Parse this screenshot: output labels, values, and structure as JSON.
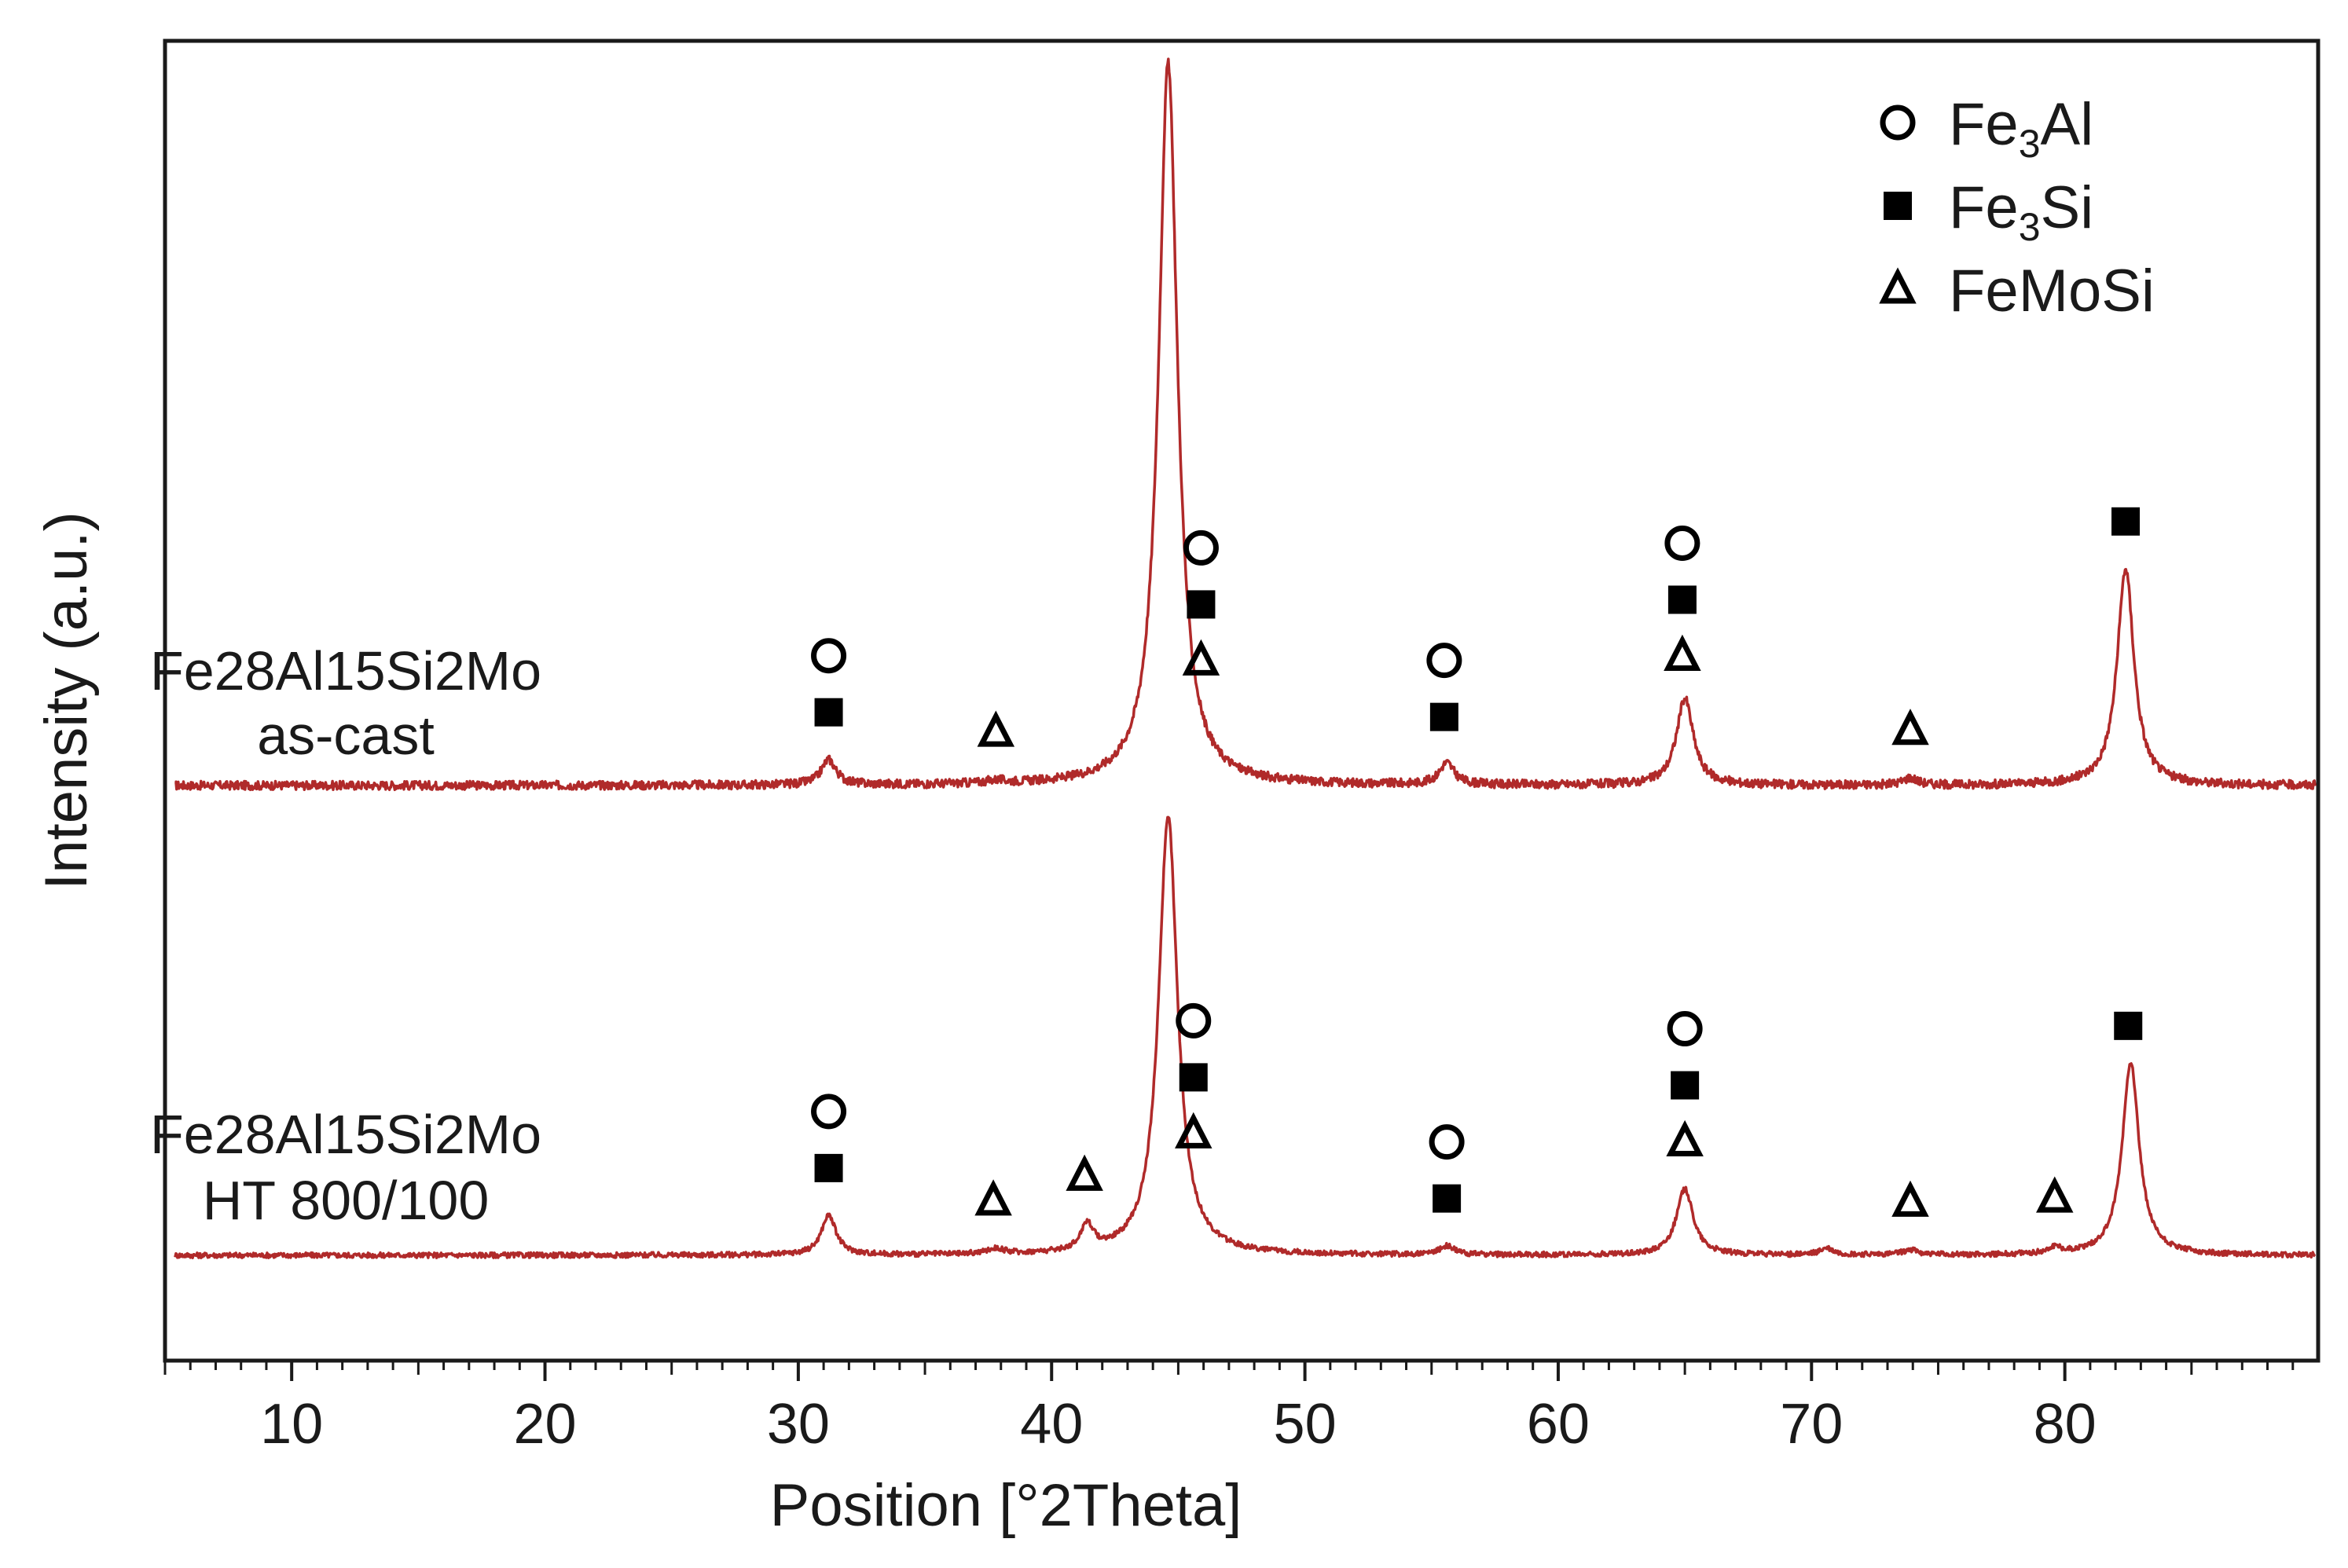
{
  "chart_data": {
    "type": "line",
    "title": "",
    "xlabel": "Position [°2Theta]",
    "ylabel": "Intensity (a.u.)",
    "xlim": [
      5,
      90
    ],
    "xticks": [
      10,
      20,
      30,
      40,
      50,
      60,
      70,
      80
    ],
    "xtick_labels": [
      "10",
      "20",
      "30",
      "40",
      "50",
      "60",
      "70",
      "80"
    ],
    "y_ticks_shown": false,
    "line_color": "#b02a2a",
    "legend": {
      "location": "top-right",
      "entries": [
        {
          "name": "Fe3Al",
          "base": "Fe",
          "sub": "3",
          "rest": "Al",
          "marker": "open-circle"
        },
        {
          "name": "Fe3Si",
          "base": "Fe",
          "sub": "3",
          "rest": "Si",
          "marker": "filled-square"
        },
        {
          "name": "FeMoSi",
          "base": "FeMoSi",
          "sub": "",
          "rest": "",
          "marker": "open-triangle"
        }
      ]
    },
    "series": [
      {
        "name": "Fe28Al15Si2Mo as-cast",
        "label_lines": [
          "Fe28Al15Si2Mo",
          "as-cast"
        ],
        "baseline": 0,
        "peaks": [
          {
            "x": 31.2,
            "height": 0.035,
            "width": 0.35
          },
          {
            "x": 37.8,
            "height": 0.004,
            "width": 0.5
          },
          {
            "x": 44.6,
            "height": 1.0,
            "width": 0.45
          },
          {
            "x": 55.6,
            "height": 0.03,
            "width": 0.35
          },
          {
            "x": 65.0,
            "height": 0.12,
            "width": 0.4
          },
          {
            "x": 73.9,
            "height": 0.01,
            "width": 0.35
          },
          {
            "x": 82.4,
            "height": 0.3,
            "width": 0.4
          }
        ],
        "annotations": [
          {
            "x": 31.2,
            "phases": [
              "Fe3Al",
              "Fe3Si"
            ]
          },
          {
            "x": 37.8,
            "phases": [
              "FeMoSi"
            ]
          },
          {
            "x": 45.9,
            "phases": [
              "Fe3Al",
              "Fe3Si",
              "FeMoSi"
            ]
          },
          {
            "x": 55.5,
            "phases": [
              "Fe3Al",
              "Fe3Si"
            ]
          },
          {
            "x": 64.9,
            "phases": [
              "Fe3Al",
              "Fe3Si",
              "FeMoSi"
            ]
          },
          {
            "x": 73.9,
            "phases": [
              "FeMoSi"
            ]
          },
          {
            "x": 82.4,
            "phases": [
              "Fe3Si"
            ]
          }
        ]
      },
      {
        "name": "Fe28Al15Si2Mo HT 800/100",
        "label_lines": [
          "Fe28Al15Si2Mo",
          "HT 800/100"
        ],
        "baseline": 0,
        "peaks": [
          {
            "x": 31.2,
            "height": 0.09,
            "width": 0.35
          },
          {
            "x": 37.8,
            "height": 0.012,
            "width": 0.4
          },
          {
            "x": 41.4,
            "height": 0.06,
            "width": 0.3
          },
          {
            "x": 44.6,
            "height": 1.0,
            "width": 0.45
          },
          {
            "x": 55.6,
            "height": 0.02,
            "width": 0.35
          },
          {
            "x": 65.0,
            "height": 0.15,
            "width": 0.4
          },
          {
            "x": 70.6,
            "height": 0.015,
            "width": 0.3
          },
          {
            "x": 73.9,
            "height": 0.012,
            "width": 0.35
          },
          {
            "x": 79.6,
            "height": 0.015,
            "width": 0.3
          },
          {
            "x": 82.6,
            "height": 0.44,
            "width": 0.4
          }
        ],
        "annotations": [
          {
            "x": 31.2,
            "phases": [
              "Fe3Al",
              "Fe3Si"
            ]
          },
          {
            "x": 37.7,
            "phases": [
              "FeMoSi"
            ]
          },
          {
            "x": 41.3,
            "phases": [
              "FeMoSi"
            ]
          },
          {
            "x": 45.6,
            "phases": [
              "Fe3Al",
              "Fe3Si",
              "FeMoSi"
            ]
          },
          {
            "x": 55.6,
            "phases": [
              "Fe3Al",
              "Fe3Si"
            ]
          },
          {
            "x": 65.0,
            "phases": [
              "Fe3Al",
              "Fe3Si",
              "FeMoSi"
            ]
          },
          {
            "x": 73.9,
            "phases": [
              "FeMoSi"
            ]
          },
          {
            "x": 79.6,
            "phases": [
              "FeMoSi"
            ]
          },
          {
            "x": 82.5,
            "phases": [
              "Fe3Si"
            ]
          }
        ]
      }
    ]
  }
}
